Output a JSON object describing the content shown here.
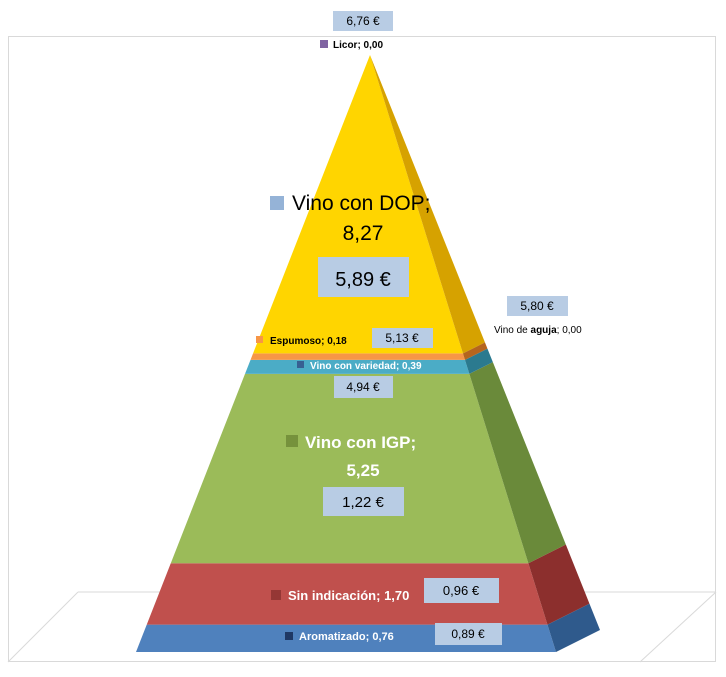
{
  "chart_data": {
    "type": "pyramid",
    "series": [
      {
        "name": "Aromatizado",
        "value": 0.76,
        "value_label": "0,76",
        "price": "0,89 €",
        "color": "#4f81bd",
        "side_color": "#2f5a8c"
      },
      {
        "name": "Sin indicación",
        "value": 1.7,
        "value_label": "1,70",
        "price": "0,96 €",
        "color": "#c0504d",
        "side_color": "#8c2f2d"
      },
      {
        "name": "Vino con IGP",
        "value": 5.25,
        "value_label": "5,25",
        "price": "1,22 €",
        "color": "#9bbb59",
        "side_color": "#6a8a3a"
      },
      {
        "name": "Vino con variedad",
        "value": 0.39,
        "value_label": "0,39",
        "price": "4,94 €",
        "color": "#4bacc6",
        "side_color": "#2b7a8f"
      },
      {
        "name": "Espumoso",
        "value": 0.18,
        "value_label": "0,18",
        "price": "5,13 €",
        "color": "#f79646",
        "side_color": "#b5651e"
      },
      {
        "name": "Vino con DOP",
        "value": 8.27,
        "value_label": "8,27",
        "price": "5,89 €",
        "color": "#ffd500",
        "side_color": "#d6a200"
      },
      {
        "name": "Vino de aguja",
        "name_prefix": "Vino de ",
        "name_bold": "aguja",
        "value": 0.0,
        "value_label": "0,00",
        "price": "5,80 €",
        "color": "#c0c0c0",
        "side_color": "#909090"
      },
      {
        "name": "Licor",
        "value": 0.0,
        "value_label": "0,00",
        "price": "6,76 €",
        "color": "#8064a2",
        "side_color": "#5a4575"
      }
    ]
  },
  "labels": {
    "licor": "Licor; 0,00",
    "dop_name": "Vino con DOP;",
    "dop_value": "8,27",
    "aguja_prefix": "Vino de ",
    "aguja_bold": "aguja",
    "aguja_suffix": "; 0,00",
    "espumoso": "Espumoso; 0,18",
    "variedad": "Vino con variedad; 0,39",
    "igp_name": "Vino con IGP;",
    "igp_value": "5,25",
    "sin": "Sin indicación; 1,70",
    "aromatizado": "Aromatizado; 0,76"
  },
  "prices": {
    "licor": "6,76 €",
    "dop": "5,89 €",
    "aguja": "5,80 €",
    "espumoso": "5,13 €",
    "variedad": "4,94 €",
    "igp": "1,22 €",
    "sin": "0,96 €",
    "aromatizado": "0,89 €"
  }
}
